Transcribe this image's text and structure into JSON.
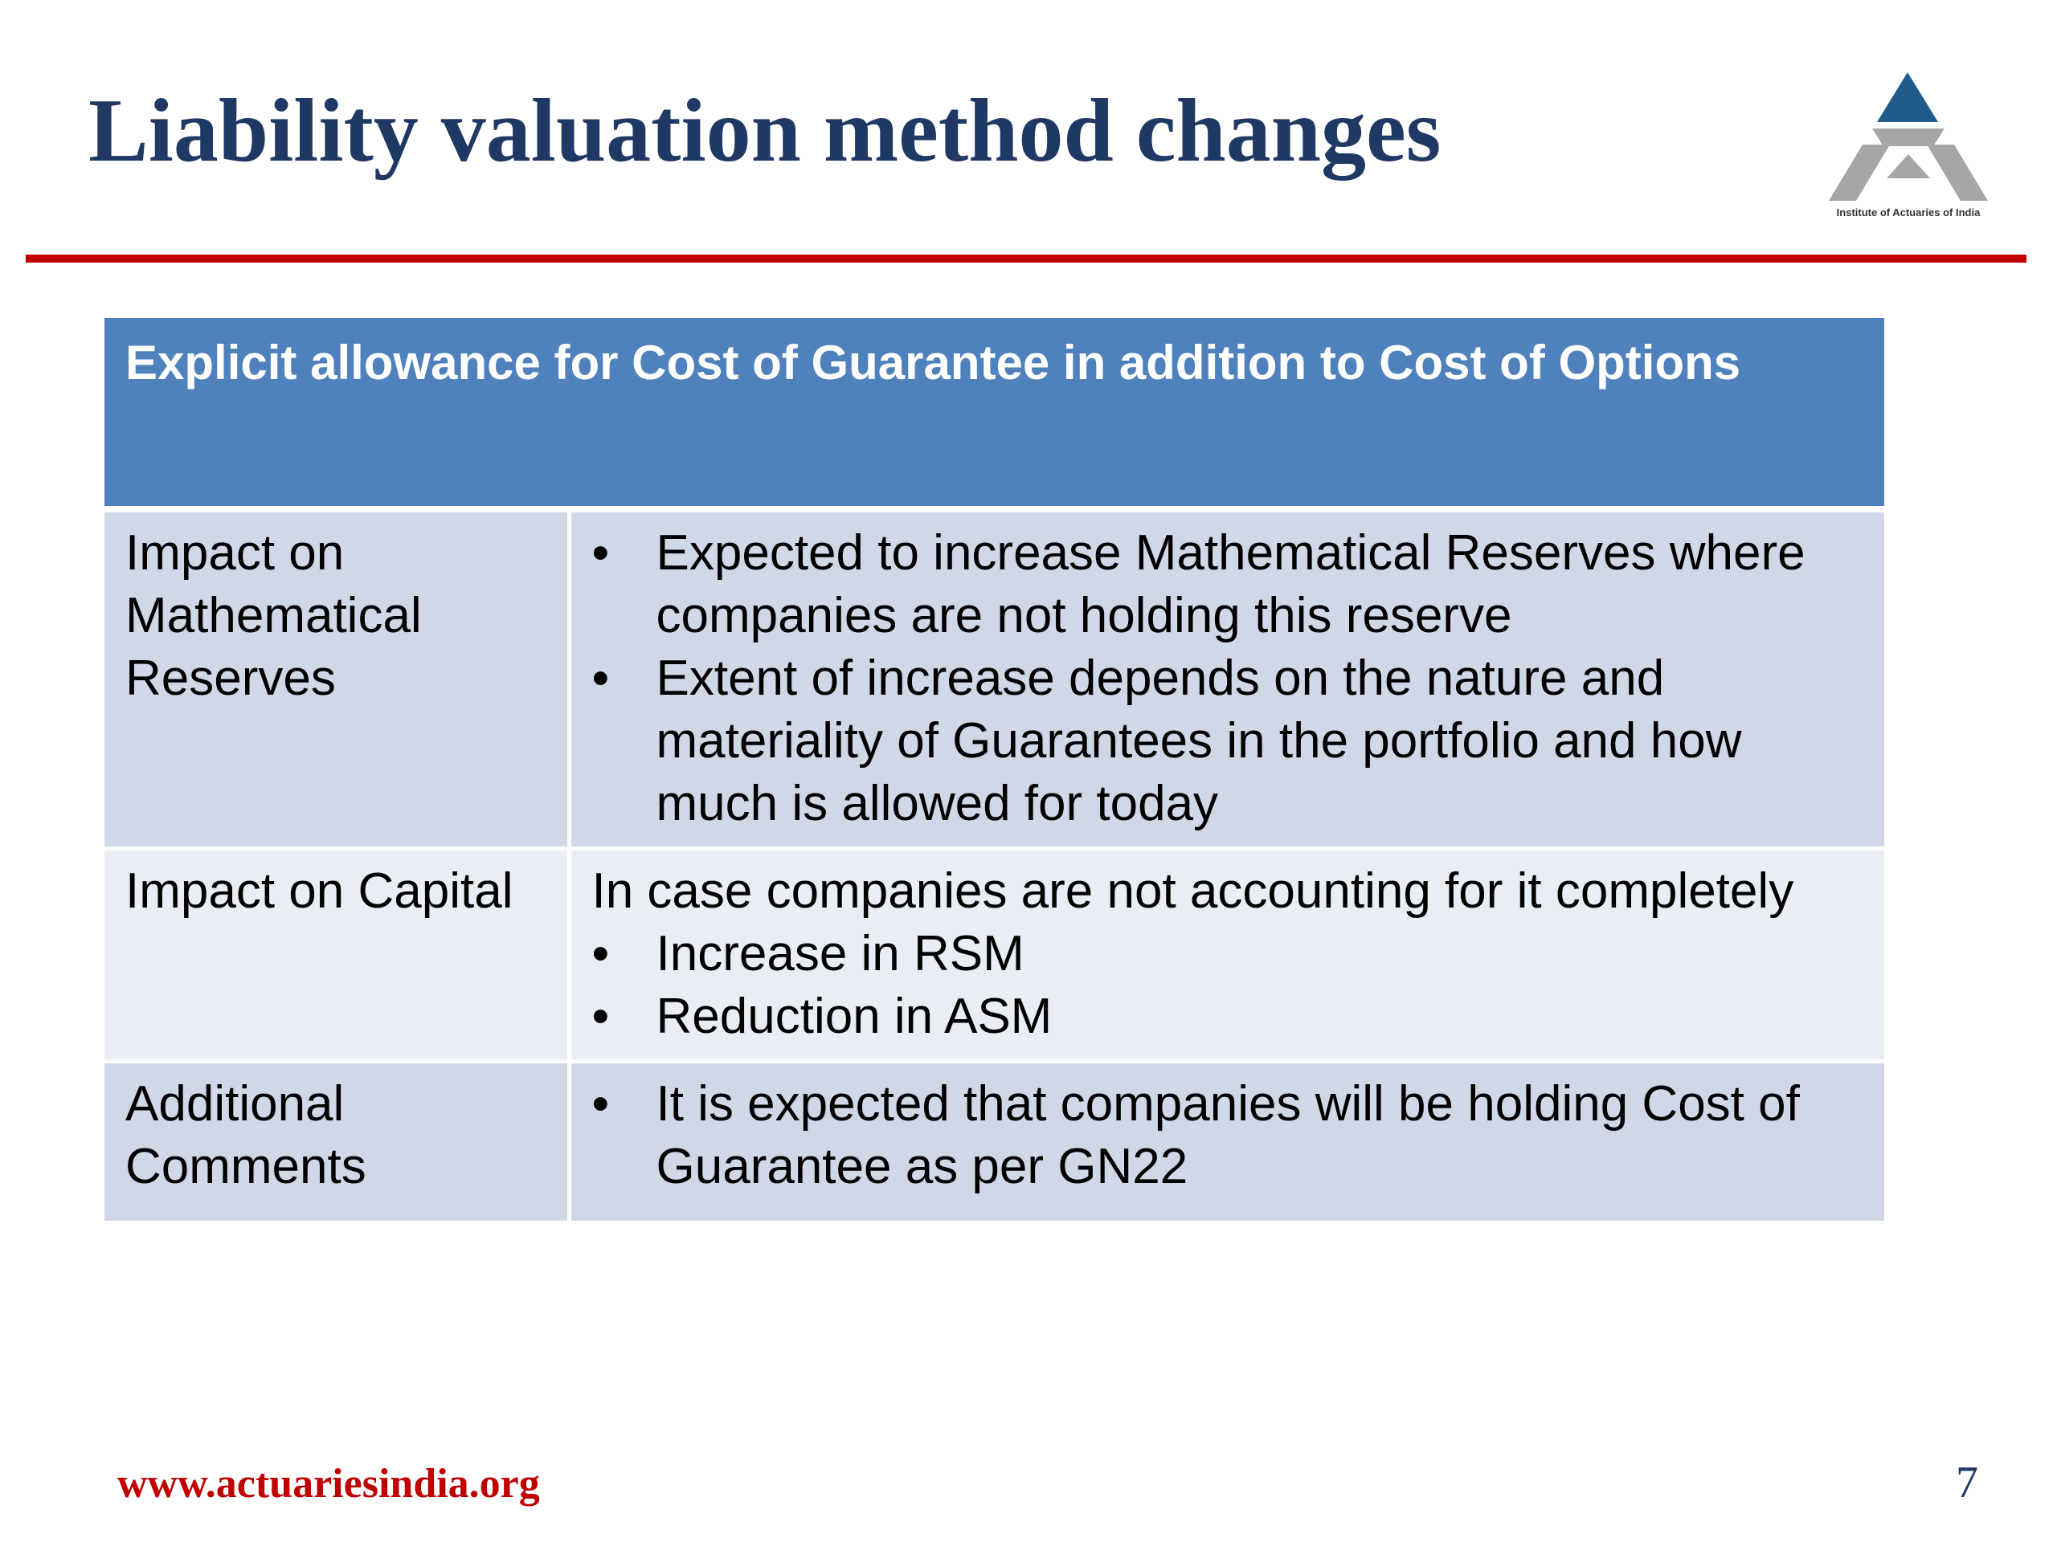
{
  "slide": {
    "title": "Liability valuation method changes",
    "logo_caption": "Institute of Actuaries of India",
    "footer_url": "www.actuariesindia.org",
    "page_number": "7"
  },
  "table": {
    "header": "Explicit allowance for Cost of Guarantee in addition to Cost of Options",
    "rows": [
      {
        "label": "Impact on Mathematical Reserves",
        "intro": "",
        "bullets": [
          "Expected to increase Mathematical Reserves where companies are not holding this reserve",
          "Extent of increase depends on the nature and materiality of Guarantees in the portfolio and how much is allowed for today"
        ]
      },
      {
        "label": "Impact on Capital",
        "intro": "In case companies are not accounting for it completely",
        "bullets": [
          "Increase in RSM",
          "Reduction in ASM"
        ]
      },
      {
        "label": "Additional Comments",
        "intro": "",
        "bullets": [
          "It is expected that companies will be holding Cost of Guarantee as per GN22"
        ]
      }
    ]
  },
  "bullet_glyph": "•",
  "colors": {
    "title": "#1f3864",
    "divider": "#c00000",
    "header_fill": "#4f81bd",
    "row_fill_dark": "#d0d8e8",
    "row_fill_light": "#e9edf4",
    "logo_blue": "#1f5c8c",
    "logo_gray": "#a6a6a6",
    "footer_url": "#c00000"
  }
}
